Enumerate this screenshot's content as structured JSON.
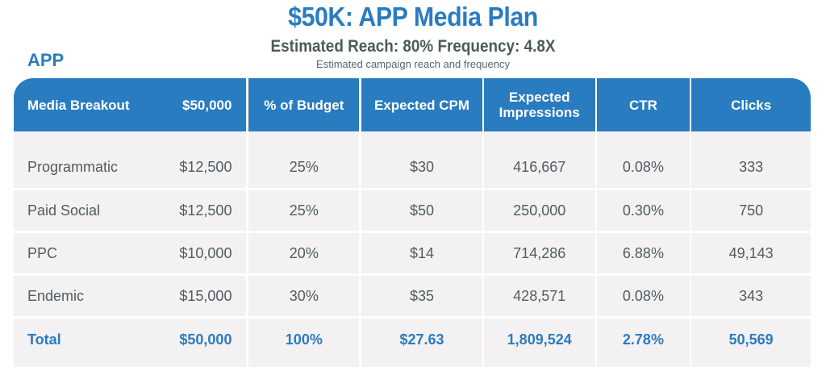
{
  "header": {
    "title": "$50K: APP Media Plan",
    "subtitle": "Estimated Reach: 80% Frequency: 4.8X",
    "caption": "Estimated campaign reach and frequency",
    "section_label": "APP"
  },
  "colors": {
    "accent": "#2a7cc0",
    "text": "#4f5d60",
    "cell_bg": "#f3f1f2"
  },
  "table": {
    "columns": [
      "Media Breakout",
      "$50,000",
      "% of Budget",
      "Expected CPM",
      "Expected Impressions",
      "CTR",
      "Clicks"
    ],
    "rows": [
      {
        "channel": "Programmatic",
        "budget": "$12,500",
        "pct": "25%",
        "cpm": "$30",
        "impressions": "416,667",
        "ctr": "0.08%",
        "clicks": "333"
      },
      {
        "channel": "Paid Social",
        "budget": "$12,500",
        "pct": "25%",
        "cpm": "$50",
        "impressions": "250,000",
        "ctr": "0.30%",
        "clicks": "750"
      },
      {
        "channel": "PPC",
        "budget": "$10,000",
        "pct": "20%",
        "cpm": "$14",
        "impressions": "714,286",
        "ctr": "6.88%",
        "clicks": "49,143"
      },
      {
        "channel": "Endemic",
        "budget": "$15,000",
        "pct": "30%",
        "cpm": "$35",
        "impressions": "428,571",
        "ctr": "0.08%",
        "clicks": "343"
      }
    ],
    "total": {
      "channel": "Total",
      "budget": "$50,000",
      "pct": "100%",
      "cpm": "$27.63",
      "impressions": "1,809,524",
      "ctr": "2.78%",
      "clicks": "50,569"
    }
  }
}
